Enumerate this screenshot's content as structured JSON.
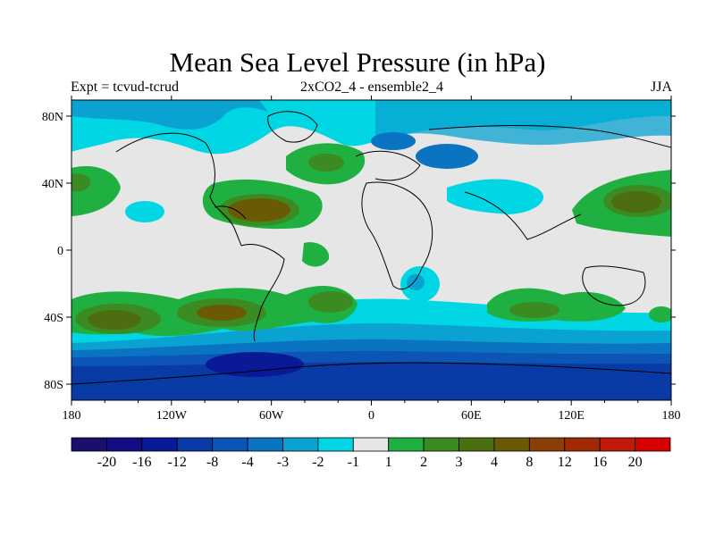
{
  "title": "Mean Sea Level Pressure (in hPa)",
  "subtitle_left": "Expt = tcvud-tcrud",
  "subtitle_center": "2xCO2_4 - ensemble2_4",
  "subtitle_right": "JJA",
  "axes": {
    "lon_ticks": [
      "180",
      "120W",
      "60W",
      "0",
      "60E",
      "120E",
      "180"
    ],
    "lat_ticks": [
      "80N",
      "40N",
      "0",
      "40S",
      "80S"
    ]
  },
  "legend": {
    "colors": [
      "#1a0f6b",
      "#120d82",
      "#0a1a96",
      "#0a3aa6",
      "#0c55b4",
      "#0a73c2",
      "#0aa2d0",
      "#00d6e4",
      "#e6e6e6",
      "#1fb041",
      "#3c8a22",
      "#4c6e10",
      "#6a5a06",
      "#8a3f06",
      "#a02a06",
      "#c01a0a",
      "#d80000"
    ],
    "labels": [
      "-20",
      "-16",
      "-12",
      "-8",
      "-4",
      "-3",
      "-2",
      "-1",
      "1",
      "2",
      "3",
      "4",
      "8",
      "12",
      "16",
      "20"
    ]
  }
}
